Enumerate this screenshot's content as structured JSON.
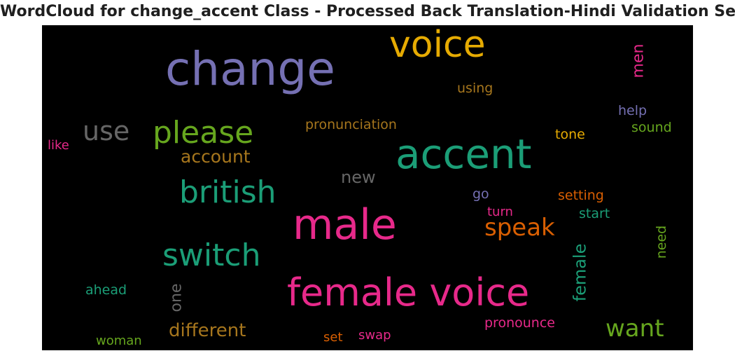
{
  "title": "WordCloud for change_accent Class - Processed Back Translation-Hindi Validation Set",
  "background_color": "#000000",
  "words": [
    {
      "text": "change",
      "color": "#7570b3",
      "orientation": "horizontal"
    },
    {
      "text": "voice",
      "color": "#e6ab02",
      "orientation": "horizontal"
    },
    {
      "text": "men",
      "color": "#e7298a",
      "orientation": "vertical"
    },
    {
      "text": "using",
      "color": "#a6761d",
      "orientation": "horizontal"
    },
    {
      "text": "use",
      "color": "#666666",
      "orientation": "horizontal"
    },
    {
      "text": "please",
      "color": "#66a61e",
      "orientation": "horizontal"
    },
    {
      "text": "pronunciation",
      "color": "#a6761d",
      "orientation": "horizontal"
    },
    {
      "text": "help",
      "color": "#7570b3",
      "orientation": "horizontal"
    },
    {
      "text": "sound",
      "color": "#66a61e",
      "orientation": "horizontal"
    },
    {
      "text": "tone",
      "color": "#e6ab02",
      "orientation": "horizontal"
    },
    {
      "text": "like",
      "color": "#e7298a",
      "orientation": "horizontal"
    },
    {
      "text": "account",
      "color": "#a6761d",
      "orientation": "horizontal"
    },
    {
      "text": "accent",
      "color": "#1b9e77",
      "orientation": "horizontal"
    },
    {
      "text": "new",
      "color": "#666666",
      "orientation": "horizontal"
    },
    {
      "text": "british",
      "color": "#1b9e77",
      "orientation": "horizontal"
    },
    {
      "text": "go",
      "color": "#7570b3",
      "orientation": "horizontal"
    },
    {
      "text": "setting",
      "color": "#d95f02",
      "orientation": "horizontal"
    },
    {
      "text": "turn",
      "color": "#e7298a",
      "orientation": "horizontal"
    },
    {
      "text": "start",
      "color": "#1b9e77",
      "orientation": "horizontal"
    },
    {
      "text": "male",
      "color": "#e7298a",
      "orientation": "horizontal"
    },
    {
      "text": "speak",
      "color": "#d95f02",
      "orientation": "horizontal"
    },
    {
      "text": "need",
      "color": "#66a61e",
      "orientation": "vertical"
    },
    {
      "text": "switch",
      "color": "#1b9e77",
      "orientation": "horizontal"
    },
    {
      "text": "female",
      "color": "#1b9e77",
      "orientation": "vertical"
    },
    {
      "text": "ahead",
      "color": "#1b9e77",
      "orientation": "horizontal"
    },
    {
      "text": "one",
      "color": "#666666",
      "orientation": "vertical"
    },
    {
      "text": "female voice",
      "color": "#e7298a",
      "orientation": "horizontal"
    },
    {
      "text": "different",
      "color": "#a6761d",
      "orientation": "horizontal"
    },
    {
      "text": "want",
      "color": "#66a61e",
      "orientation": "horizontal"
    },
    {
      "text": "pronounce",
      "color": "#e7298a",
      "orientation": "horizontal"
    },
    {
      "text": "woman",
      "color": "#66a61e",
      "orientation": "horizontal"
    },
    {
      "text": "set",
      "color": "#d95f02",
      "orientation": "horizontal"
    },
    {
      "text": "swap",
      "color": "#e7298a",
      "orientation": "horizontal"
    }
  ]
}
